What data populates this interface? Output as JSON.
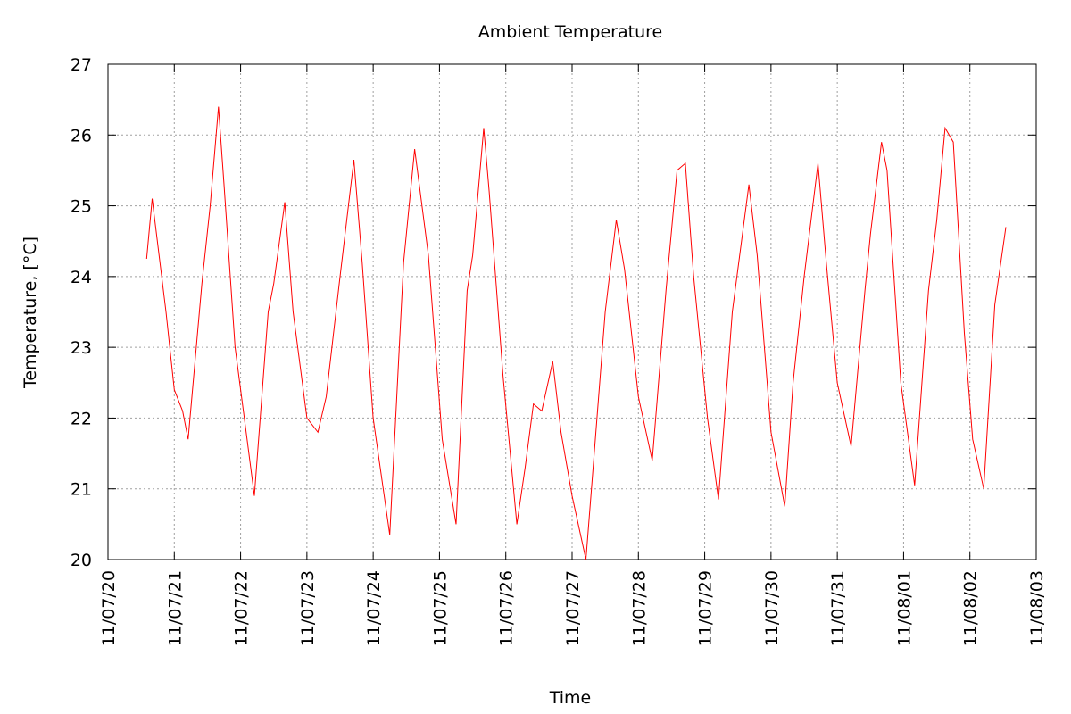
{
  "chart_data": {
    "type": "line",
    "title": "Ambient Temperature",
    "x_label": "Time",
    "y_label": "Temperature, [°C]",
    "x": [
      "11/07/20 14:00",
      "11/07/20 16:00",
      "11/07/20 21:00",
      "11/07/21 00:00",
      "11/07/21 03:00",
      "11/07/21 05:00",
      "11/07/21 10:00",
      "11/07/21 13:00",
      "11/07/21 16:00",
      "11/07/21 18:00",
      "11/07/21 22:00",
      "11/07/22 02:00",
      "11/07/22 05:00",
      "11/07/22 10:00",
      "11/07/22 12:00",
      "11/07/22 16:00",
      "11/07/22 19:00",
      "11/07/23 00:00",
      "11/07/23 04:00",
      "11/07/23 07:00",
      "11/07/23 12:00",
      "11/07/23 17:00",
      "11/07/23 20:00",
      "11/07/24 00:00",
      "11/07/24 06:00",
      "11/07/24 11:00",
      "11/07/24 15:00",
      "11/07/24 20:00",
      "11/07/25 01:00",
      "11/07/25 06:00",
      "11/07/25 10:00",
      "11/07/25 12:00",
      "11/07/25 16:00",
      "11/07/25 18:00",
      "11/07/25 23:00",
      "11/07/26 04:00",
      "11/07/26 07:00",
      "11/07/26 10:00",
      "11/07/26 13:00",
      "11/07/26 17:00",
      "11/07/26 20:00",
      "11/07/27 00:00",
      "11/07/27 05:00",
      "11/07/27 08:00",
      "11/07/27 12:00",
      "11/07/27 16:00",
      "11/07/27 19:00",
      "11/07/28 00:00",
      "11/07/28 05:00",
      "11/07/28 10:00",
      "11/07/28 14:00",
      "11/07/28 17:00",
      "11/07/28 20:00",
      "11/07/29 01:00",
      "11/07/29 05:00",
      "11/07/29 10:00",
      "11/07/29 16:00",
      "11/07/29 19:00",
      "11/07/30 00:00",
      "11/07/30 05:00",
      "11/07/30 08:00",
      "11/07/30 12:00",
      "11/07/30 17:00",
      "11/07/30 20:00",
      "11/07/31 00:00",
      "11/07/31 05:00",
      "11/07/31 10:00",
      "11/07/31 12:00",
      "11/07/31 16:00",
      "11/07/31 18:00",
      "11/07/31 23:00",
      "11/08/01 04:00",
      "11/08/01 09:00",
      "11/08/01 12:00",
      "11/08/01 15:00",
      "11/08/01 18:00",
      "11/08/01 22:00",
      "11/08/02 01:00",
      "11/08/02 05:00",
      "11/08/02 09:00",
      "11/08/02 13:00"
    ],
    "series": [
      {
        "name": "Ambient Temperature",
        "color": "#ff0000",
        "values": [
          24.25,
          25.1,
          23.5,
          22.4,
          22.1,
          21.7,
          23.9,
          25.0,
          26.4,
          25.3,
          23.0,
          21.8,
          20.9,
          23.5,
          23.9,
          25.05,
          23.5,
          22.0,
          21.8,
          22.3,
          24.0,
          25.65,
          24.2,
          22.0,
          20.35,
          24.2,
          25.8,
          24.3,
          21.7,
          20.5,
          23.8,
          24.3,
          26.1,
          25.2,
          22.6,
          20.5,
          21.3,
          22.2,
          22.1,
          22.8,
          21.8,
          20.9,
          20.0,
          21.5,
          23.5,
          24.8,
          24.1,
          22.3,
          21.4,
          23.8,
          25.5,
          25.6,
          24.0,
          22.0,
          20.85,
          23.5,
          25.3,
          24.3,
          21.8,
          20.75,
          22.5,
          24.0,
          25.6,
          24.2,
          22.5,
          21.6,
          23.8,
          24.6,
          25.9,
          25.5,
          22.5,
          21.05,
          23.8,
          24.8,
          26.1,
          25.9,
          23.2,
          21.7,
          21.0,
          23.6,
          24.7
        ]
      }
    ],
    "xlim": [
      "11/07/20",
      "11/08/03"
    ],
    "xticks": [
      "11/07/20",
      "11/07/21",
      "11/07/22",
      "11/07/23",
      "11/07/24",
      "11/07/25",
      "11/07/26",
      "11/07/27",
      "11/07/28",
      "11/07/29",
      "11/07/30",
      "11/07/31",
      "11/08/01",
      "11/08/02",
      "11/08/03"
    ],
    "ylim": [
      20,
      27
    ],
    "yticks": [
      20,
      21,
      22,
      23,
      24,
      25,
      26,
      27
    ],
    "grid": true
  }
}
